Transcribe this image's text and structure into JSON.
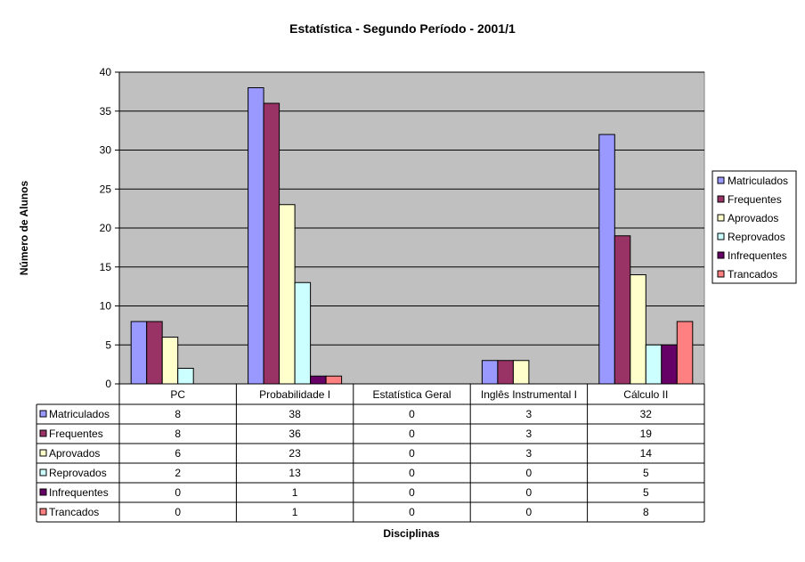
{
  "chart_data": {
    "type": "bar",
    "title": "Estatística - Segundo Período - 2001/1",
    "xlabel": "Disciplinas",
    "ylabel": "Número de Alunos",
    "ylim": [
      0,
      40
    ],
    "yticks": [
      0,
      5,
      10,
      15,
      20,
      25,
      30,
      35,
      40
    ],
    "grid": true,
    "legend_position": "right",
    "data_table": true,
    "categories": [
      "PC",
      "Probabilidade I",
      "Estatística Geral",
      "Inglês Instrumental I",
      "Cálculo II"
    ],
    "series": [
      {
        "name": "Matriculados",
        "color": "#9999ff",
        "values": [
          8,
          38,
          0,
          3,
          32
        ]
      },
      {
        "name": "Frequentes",
        "color": "#993366",
        "values": [
          8,
          36,
          0,
          3,
          19
        ]
      },
      {
        "name": "Aprovados",
        "color": "#ffffcc",
        "values": [
          6,
          23,
          0,
          3,
          14
        ]
      },
      {
        "name": "Reprovados",
        "color": "#ccffff",
        "values": [
          2,
          13,
          0,
          0,
          5
        ]
      },
      {
        "name": "Infrequentes",
        "color": "#660066",
        "values": [
          0,
          1,
          0,
          0,
          5
        ]
      },
      {
        "name": "Trancados",
        "color": "#ff8080",
        "values": [
          0,
          1,
          0,
          0,
          8
        ]
      }
    ],
    "plot_background": "#c0c0c0"
  }
}
